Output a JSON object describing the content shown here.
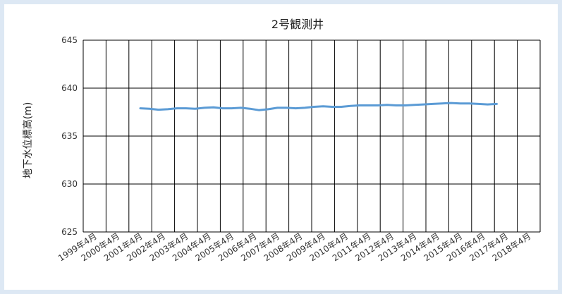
{
  "chart_data": {
    "type": "line",
    "title": "2号観測井",
    "xlabel": "",
    "ylabel": "地下水位標高(m)",
    "ylim": [
      625,
      645
    ],
    "yticks": [
      625,
      630,
      635,
      640,
      645
    ],
    "categories": [
      "1999年4月",
      "2000年4月",
      "2001年4月",
      "2002年4月",
      "2003年4月",
      "2004年4月",
      "2005年4月",
      "2006年4月",
      "2007年4月",
      "2008年4月",
      "2009年4月",
      "2010年4月",
      "2011年4月",
      "2012年4月",
      "2013年4月",
      "2014年4月",
      "2015年4月",
      "2016年4月",
      "2017年4月",
      "2018年4月"
    ],
    "grid": true,
    "legend": "none",
    "series": [
      {
        "color": "#5b9bd5",
        "points": [
          [
            2.5,
            637.9
          ],
          [
            2.9,
            637.85
          ],
          [
            3.3,
            637.75
          ],
          [
            3.7,
            637.8
          ],
          [
            4.1,
            637.9
          ],
          [
            4.5,
            637.9
          ],
          [
            4.9,
            637.85
          ],
          [
            5.3,
            637.95
          ],
          [
            5.7,
            638.0
          ],
          [
            6.1,
            637.9
          ],
          [
            6.5,
            637.9
          ],
          [
            6.9,
            637.95
          ],
          [
            7.3,
            637.85
          ],
          [
            7.7,
            637.7
          ],
          [
            8.1,
            637.8
          ],
          [
            8.5,
            637.95
          ],
          [
            8.9,
            637.95
          ],
          [
            9.3,
            637.9
          ],
          [
            9.7,
            637.95
          ],
          [
            10.1,
            638.05
          ],
          [
            10.5,
            638.1
          ],
          [
            10.9,
            638.05
          ],
          [
            11.3,
            638.05
          ],
          [
            11.7,
            638.15
          ],
          [
            12.1,
            638.2
          ],
          [
            12.5,
            638.2
          ],
          [
            12.9,
            638.2
          ],
          [
            13.3,
            638.25
          ],
          [
            13.7,
            638.2
          ],
          [
            14.1,
            638.2
          ],
          [
            14.5,
            638.25
          ],
          [
            14.9,
            638.3
          ],
          [
            15.3,
            638.35
          ],
          [
            15.7,
            638.4
          ],
          [
            16.1,
            638.45
          ],
          [
            16.5,
            638.4
          ],
          [
            16.9,
            638.4
          ],
          [
            17.3,
            638.35
          ],
          [
            17.7,
            638.3
          ],
          [
            18.1,
            638.35
          ]
        ]
      }
    ]
  }
}
